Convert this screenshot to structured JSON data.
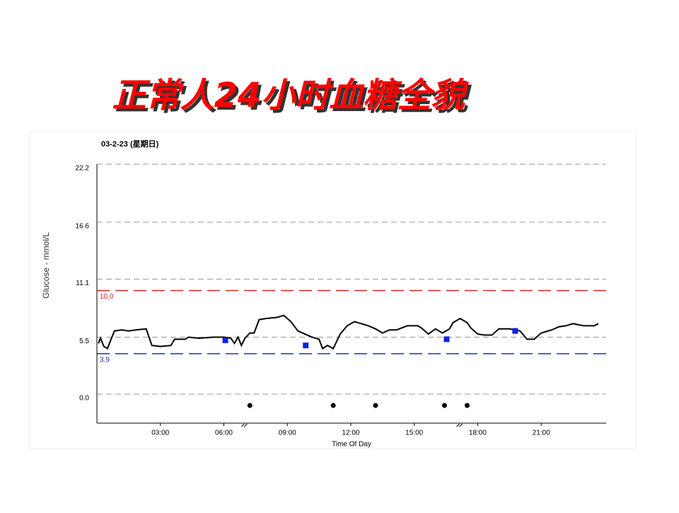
{
  "chart_data": {
    "type": "line",
    "title": "正常人24小时血糖全貌",
    "subtitle": "03-2-23 (星期日)",
    "x_label": "Time Of Day",
    "y_label": "Glucose - mmol/L",
    "xlim": [
      0,
      24.07
    ],
    "ylim": [
      -2.8,
      22.2
    ],
    "xticks": [
      {
        "value": 3,
        "label": "03:00"
      },
      {
        "value": 6,
        "label": "06:00"
      },
      {
        "value": 9,
        "label": "09:00"
      },
      {
        "value": 12,
        "label": "12:00"
      },
      {
        "value": 15,
        "label": "15:00"
      },
      {
        "value": 18,
        "label": "18:00"
      },
      {
        "value": 21,
        "label": "21:00"
      }
    ],
    "yticks": [
      {
        "value": 0,
        "label": "0.0"
      },
      5.5,
      11.1,
      16.6,
      22.2
    ],
    "grid": true,
    "reference_lines": [
      {
        "value": 10,
        "label": "10.0",
        "color": "#d02828"
      },
      {
        "value": 3.9,
        "color": "#2030b0"
      }
    ],
    "series": [
      {
        "style": "line",
        "color": "#000000",
        "x": [
          0.07,
          0.17,
          0.33,
          0.5,
          0.67,
          0.83,
          1.17,
          1.5,
          1.83,
          2.33,
          2.6,
          3.0,
          3.5,
          3.67,
          4.17,
          4.33,
          4.83,
          5.5,
          6.0,
          6.33,
          6.5,
          6.67,
          6.83,
          7.0,
          7.23,
          7.43,
          7.67,
          8.0,
          8.5,
          8.83,
          9.17,
          9.5,
          9.83,
          10.17,
          10.5,
          10.67,
          10.9,
          11.17,
          11.5,
          11.83,
          12.17,
          12.5,
          12.83,
          13.17,
          13.5,
          13.83,
          14.17,
          14.67,
          15.17,
          15.33,
          15.67,
          16.0,
          16.33,
          16.67,
          16.83,
          17.17,
          17.5,
          17.67,
          18.0,
          18.33,
          18.67,
          19.0,
          19.5,
          20.0,
          20.33,
          20.67,
          21.0,
          21.5,
          21.83,
          22.17,
          22.5,
          23.0,
          23.5,
          23.7
        ],
        "values": [
          4.9,
          5.4,
          4.6,
          4.4,
          5.3,
          6.1,
          6.2,
          6.1,
          6.2,
          6.3,
          4.7,
          4.6,
          4.7,
          5.3,
          5.3,
          5.5,
          5.4,
          5.5,
          5.5,
          5.4,
          4.9,
          5.5,
          4.7,
          5.4,
          5.9,
          5.9,
          7.2,
          7.3,
          7.4,
          7.6,
          7.0,
          6.1,
          5.8,
          5.5,
          5.3,
          4.4,
          4.7,
          4.4,
          5.8,
          6.6,
          7.0,
          6.8,
          6.6,
          6.3,
          5.9,
          6.2,
          6.2,
          6.6,
          6.6,
          6.4,
          5.8,
          6.3,
          5.9,
          6.3,
          6.9,
          7.3,
          6.9,
          6.4,
          5.8,
          5.7,
          5.7,
          6.3,
          6.3,
          6.1,
          5.3,
          5.3,
          5.9,
          6.2,
          6.5,
          6.6,
          6.8,
          6.6,
          6.6,
          6.8
        ]
      },
      {
        "style": "square",
        "color": "#1020e0",
        "x": [
          6.07,
          9.87,
          16.53,
          19.77
        ],
        "values": [
          5.2,
          4.7,
          5.3,
          6.1
        ]
      }
    ],
    "events": [
      7.23,
      11.17,
      13.17,
      16.43,
      17.5
    ]
  }
}
